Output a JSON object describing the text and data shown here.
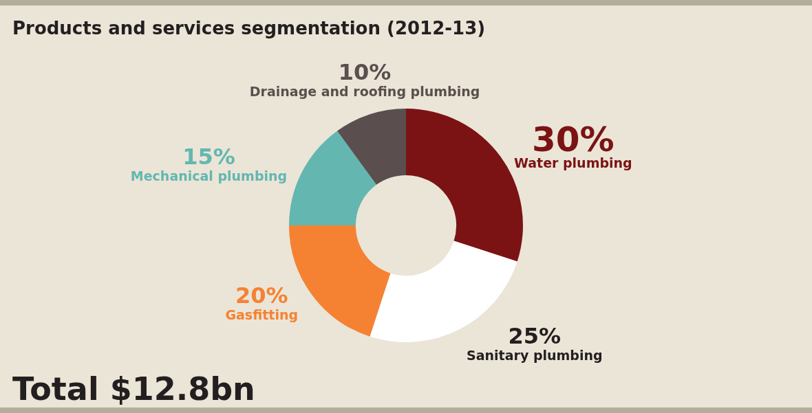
{
  "chart_data": {
    "type": "donut",
    "title": "Products and services segmentation (2012-13)",
    "categories": [
      "Water plumbing",
      "Sanitary plumbing",
      "Gasfitting",
      "Mechanical plumbing",
      "Drainage and roofing plumbing"
    ],
    "values": [
      30,
      25,
      20,
      15,
      10
    ],
    "colors": [
      "#7b1315",
      "#ffffff",
      "#f58233",
      "#63b7b0",
      "#5a4f4e"
    ],
    "value_labels": [
      "30%",
      "25%",
      "20%",
      "15%",
      "10%"
    ],
    "legend": false,
    "annotations": [
      "Total $12.8bn"
    ]
  }
}
